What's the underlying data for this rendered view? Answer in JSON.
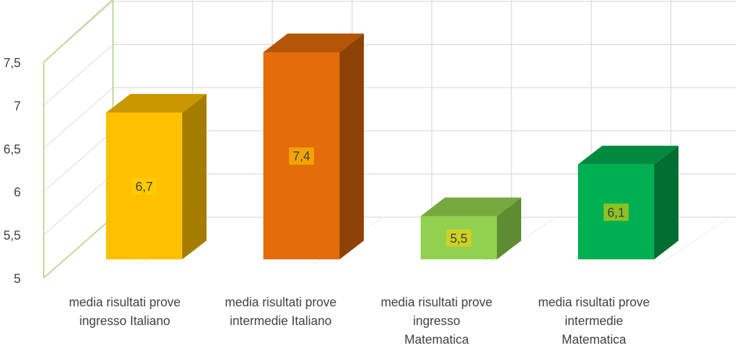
{
  "chart_data": {
    "type": "bar",
    "title": "",
    "xlabel": "",
    "ylabel": "",
    "categories": [
      "media risultati prove ingresso Italiano",
      "media risultati prove intermedie Italiano",
      "media risultati prove ingresso Matematica",
      "media risultati prove intermedie Matematica"
    ],
    "category_label_lines": [
      [
        "media risultati prove",
        "ingresso Italiano"
      ],
      [
        "media risultati prove",
        "intermedie Italiano"
      ],
      [
        "media risultati prove",
        "ingresso",
        "Matematica"
      ],
      [
        "media risultati prove",
        "intermedie",
        "Matematica"
      ]
    ],
    "values": [
      6.7,
      7.4,
      5.5,
      6.1
    ],
    "data_labels": [
      "6,7",
      "7,4",
      "5,5",
      "6,1"
    ],
    "y_ticks": [
      5,
      5.5,
      6,
      6.5,
      7,
      7.5
    ],
    "y_tick_labels": [
      "5",
      "5,5",
      "6",
      "6,5",
      "7",
      "7,5"
    ],
    "ylim": [
      5,
      7.5
    ],
    "grid": true,
    "legend": "none",
    "style": "3d-column",
    "colors": {
      "bars": [
        {
          "front": "#FFC000",
          "side": "#A67C00",
          "top": "#C99700"
        },
        {
          "front": "#E46C0A",
          "side": "#8F4206",
          "top": "#B45508"
        },
        {
          "front": "#92D050",
          "side": "#5E8C30",
          "top": "#76A83E"
        },
        {
          "front": "#00B050",
          "side": "#006E30",
          "top": "#008A3E"
        }
      ],
      "gridline": "#D9D9D9",
      "wall_edge": "#C4D79B",
      "floor_line": "#D9D9D9",
      "label_bg": "rgba(255,210,0,0.55)",
      "text": "#404040"
    }
  }
}
